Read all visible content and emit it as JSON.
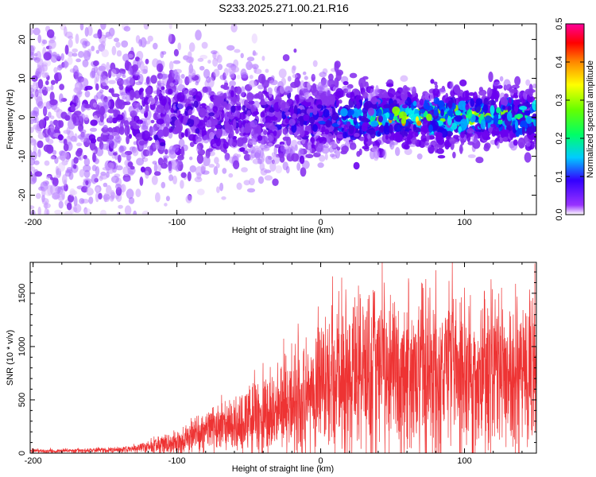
{
  "title": "S233.2025.271.00.21.R16",
  "chart_data": [
    {
      "type": "heatmap",
      "xlabel": "Height of straight line (km)",
      "ylabel": "Frequency (Hz)",
      "xlim": [
        -202,
        150
      ],
      "ylim": [
        -25,
        24
      ],
      "x_ticks": [
        -200,
        -100,
        0,
        100
      ],
      "y_ticks": [
        -20,
        -10,
        0,
        10,
        20
      ],
      "colorbar": {
        "label": "Normalized spectral amplitude",
        "range": [
          0.0,
          0.5
        ],
        "ticks": [
          "0.0",
          "0.1",
          "0.2",
          "0.3",
          "0.4",
          "0.5"
        ],
        "colormap": [
          "#ffffff",
          "#6600ff",
          "#0000ff",
          "#00ffff",
          "#00ff00",
          "#ffff00",
          "#ff8800",
          "#ff0000",
          "#ff00aa"
        ]
      },
      "description_series": [
        {
          "x": -200,
          "amp": 0.05,
          "spread": 24
        },
        {
          "x": -150,
          "amp": 0.06,
          "spread": 20
        },
        {
          "x": -100,
          "amp": 0.1,
          "spread": 12
        },
        {
          "x": -50,
          "amp": 0.1,
          "spread": 10
        },
        {
          "x": 0,
          "amp": 0.14,
          "spread": 7
        },
        {
          "x": 50,
          "amp": 0.3,
          "spread": 5
        },
        {
          "x": 100,
          "amp": 0.28,
          "spread": 5
        },
        {
          "x": 150,
          "amp": 0.25,
          "spread": 5
        }
      ]
    },
    {
      "type": "line",
      "xlabel": "Height of straight line (km)",
      "ylabel": "SNR (10 * v/v)",
      "xlim": [
        -202,
        150
      ],
      "ylim": [
        0,
        1790
      ],
      "x_ticks": [
        -200,
        -100,
        0,
        100
      ],
      "y_ticks": [
        0,
        500,
        1000,
        1500
      ],
      "color": "#ee3333",
      "series": [
        {
          "x": [
            -200,
            -180,
            -160,
            -140,
            -130,
            -120,
            -110,
            -100,
            -90,
            -80,
            -70,
            -60,
            -50,
            -40,
            -30,
            -20,
            -10,
            0,
            10,
            20,
            30,
            40,
            50,
            60,
            70,
            80,
            90,
            100,
            110,
            120,
            130,
            140,
            150
          ],
          "values": [
            20,
            20,
            25,
            30,
            40,
            60,
            80,
            100,
            150,
            180,
            230,
            270,
            320,
            350,
            390,
            450,
            520,
            600,
            650,
            700,
            720,
            740,
            750,
            740,
            730,
            720,
            730,
            720,
            710,
            700,
            700,
            710,
            700
          ],
          "peaks": [
            30,
            30,
            40,
            50,
            70,
            110,
            150,
            200,
            280,
            350,
            420,
            500,
            650,
            700,
            800,
            900,
            1050,
            1200,
            1300,
            1500,
            1650,
            1600,
            1300,
            1150,
            1200,
            1200,
            1300,
            1050,
            1250,
            1200,
            1100,
            1200,
            1780
          ]
        }
      ]
    }
  ]
}
